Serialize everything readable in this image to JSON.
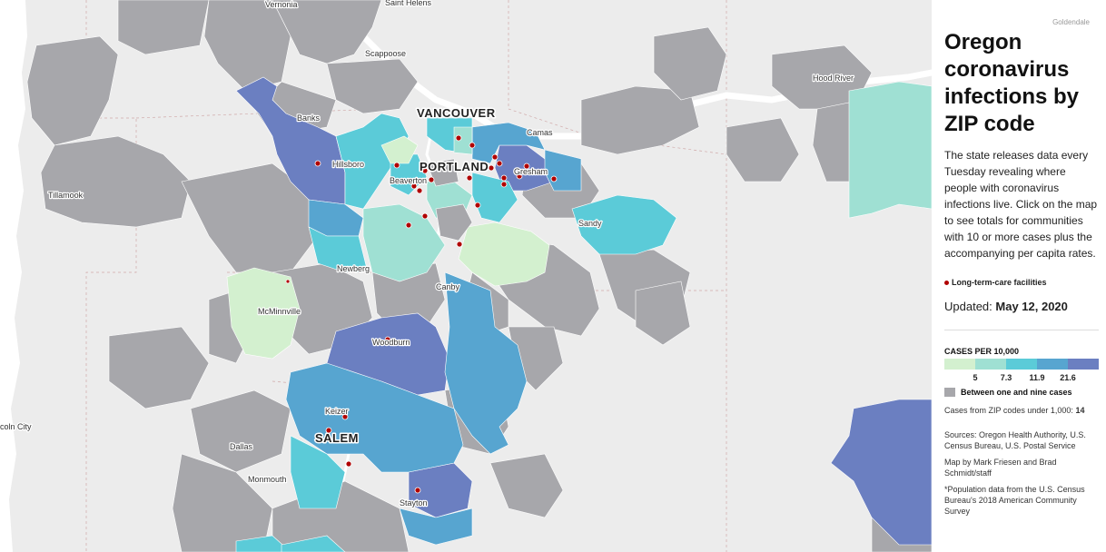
{
  "title": "Oregon coronavirus infections by ZIP code",
  "intro": "The state releases data every Tuesday revealing where people with coronavirus infections live. Click on the map to see totals for communities with 10 or more cases plus the accompanying per capita rates.",
  "facility_legend": "Long-term-care facilities",
  "updated_label": "Updated:",
  "updated_date": "May 12, 2020",
  "legend": {
    "title": "CASES PER 10,000",
    "bins": [
      "#d3f0cf",
      "#9fe0d3",
      "#5bcbd8",
      "#57a5d0",
      "#6b7fc1"
    ],
    "ticks": [
      "5",
      "7.3",
      "11.9",
      "21.6"
    ],
    "grey_label": "Between one and nine cases",
    "under_1000_label": "Cases from ZIP codes under 1,000:",
    "under_1000_value": "14"
  },
  "notes": [
    "Sources: Oregon Health Authority, U.S. Census Bureau, U.S. Postal Service",
    "Map by Mark Friesen and Brad Schmidt/staff",
    "*Population data from the U.S. Census Bureau's 2018 American Community Survey"
  ],
  "colors": {
    "grey": "#a7a7ab",
    "water": "#ffffff",
    "land": "#ececec",
    "dot": "#b00000"
  },
  "places": {
    "vernonia": "Vernonia",
    "saint_helens": "Saint Helens",
    "scappoose": "Scappoose",
    "goldendale": "Goldendale",
    "hood_river": "Hood River",
    "vancouver": "VANCOUVER",
    "camas": "Camas",
    "banks": "Banks",
    "hillsboro": "Hillsboro",
    "portland": "PORTLAND",
    "gresham": "Gresham",
    "tillamook": "Tillamook",
    "beaverton": "Beaverton",
    "sandy": "Sandy",
    "newberg": "Newberg",
    "canby": "Canby",
    "mcminnville": "McMinnville",
    "woodburn": "Woodburn",
    "keizer": "Keizer",
    "salem": "SALEM",
    "lincoln_city": "coln City",
    "dallas": "Dallas",
    "monmouth": "Monmouth",
    "stayton": "Stayton"
  }
}
